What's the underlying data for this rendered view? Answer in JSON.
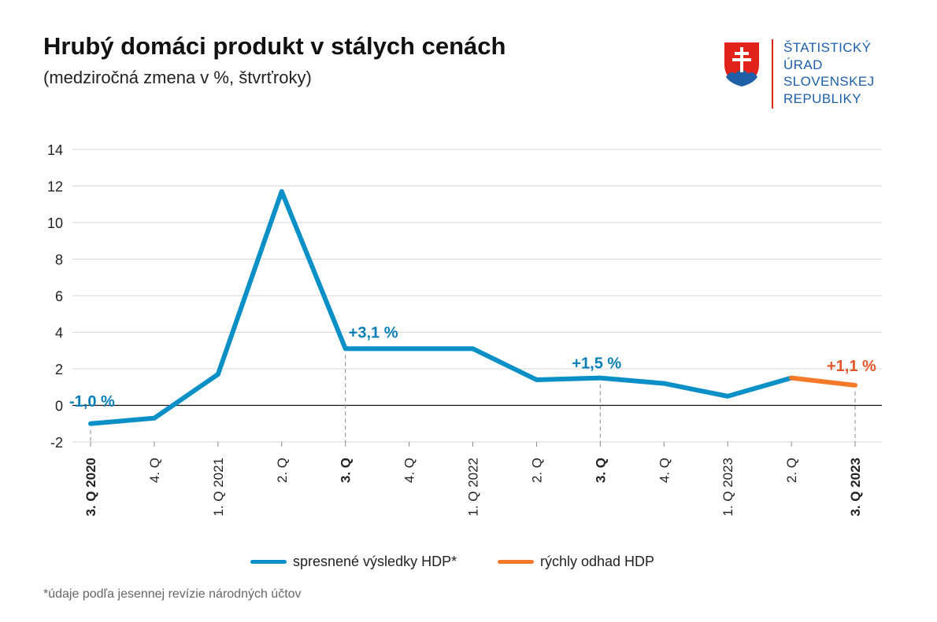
{
  "header": {
    "title": "Hrubý domáci produkt v stálych cenách",
    "subtitle": "(medziročná zmena v %, štvrťroky)"
  },
  "logo": {
    "lines": [
      "ŠTATISTICKÝ",
      "ÚRAD",
      "SLOVENSKEJ",
      "REPUBLIKY"
    ],
    "icon": "slovak-coat-of-arms-icon"
  },
  "footnote": "*údaje podľa jesennej revízie národných účtov",
  "colors": {
    "series_blue": "#0a8fc7",
    "series_orange": "#f47a2a",
    "annotation_blue": "#0a7fb5",
    "annotation_orange": "#e3572a",
    "grid": "#d4d4d4",
    "zero_line": "#111111"
  },
  "chart_data": {
    "type": "line",
    "title": "Hrubý domáci produkt v stálych cenách",
    "subtitle": "(medziročná zmena v %, štvrťroky)",
    "categories": [
      "3. Q 2020",
      "4. Q",
      "1. Q 2021",
      "2. Q",
      "3. Q",
      "4. Q",
      "1. Q 2022",
      "2. Q",
      "3. Q",
      "4. Q",
      "1. Q 2023",
      "2. Q",
      "3. Q 2023"
    ],
    "bold_categories": [
      0,
      4,
      8,
      12
    ],
    "ylim": [
      -2,
      14
    ],
    "yticks": [
      -2,
      0,
      2,
      4,
      6,
      8,
      10,
      12,
      14
    ],
    "grid": true,
    "legend_position": "bottom",
    "series": [
      {
        "name": "spresnené výsledky HDP*",
        "color": "#0a8fc7",
        "values": [
          -1.0,
          -0.7,
          1.7,
          11.7,
          3.1,
          3.1,
          3.1,
          1.4,
          1.5,
          1.2,
          0.5,
          1.5,
          null
        ]
      },
      {
        "name": "rýchly odhad HDP",
        "color": "#f47a2a",
        "values": [
          null,
          null,
          null,
          null,
          null,
          null,
          null,
          null,
          null,
          null,
          null,
          1.5,
          1.1
        ]
      }
    ],
    "annotations": [
      {
        "index": 0,
        "value": -1.0,
        "text": "-1,0 %",
        "color": "#0a7fb5"
      },
      {
        "index": 4,
        "value": 3.1,
        "text": "+3,1 %",
        "color": "#0a7fb5"
      },
      {
        "index": 8,
        "value": 1.5,
        "text": "+1,5 %",
        "color": "#0a7fb5"
      },
      {
        "index": 12,
        "value": 1.1,
        "text": "+1,1 %",
        "color": "#e3572a"
      }
    ],
    "dashed_markers": [
      0,
      4,
      8,
      12
    ]
  }
}
